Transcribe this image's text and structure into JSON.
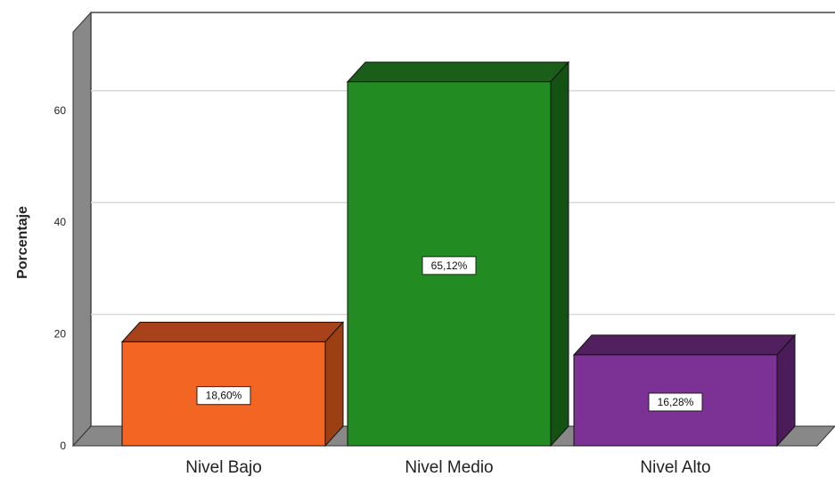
{
  "chart_data": {
    "type": "bar",
    "title": "",
    "xlabel": "",
    "ylabel": "Porcentaje",
    "ylim": [
      0,
      70
    ],
    "yticks": [
      0,
      20,
      40,
      60
    ],
    "grid": true,
    "style": "3d",
    "categories": [
      "Nivel Bajo",
      "Nivel Medio",
      "Nivel Alto"
    ],
    "values": [
      18.6,
      65.12,
      16.28
    ],
    "data_labels": [
      "18,60%",
      "65,12%",
      "16,28%"
    ],
    "colors": [
      {
        "front": "#f26522",
        "side": "#9c3f12",
        "top": "#a8421a"
      },
      {
        "front": "#228b22",
        "side": "#145214",
        "top": "#1a5e1a"
      },
      {
        "front": "#7b3294",
        "side": "#4a1d5a",
        "top": "#52205f"
      }
    ],
    "wall_color": "#888888",
    "grid_color": "#d9d9d9"
  }
}
